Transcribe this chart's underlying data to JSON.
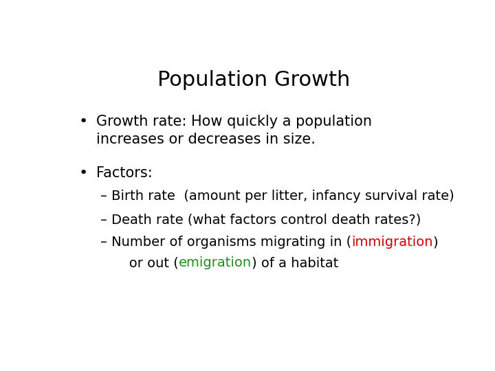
{
  "title": "Population Growth",
  "title_fontsize": 22,
  "title_color": "#000000",
  "background_color": "#ffffff",
  "bullet1_line1": "Growth rate: How quickly a population",
  "bullet1_line2": "increases or decreases in size.",
  "bullet2_text": "Factors:",
  "sub1_text": "– Birth rate  (amount per litter, infancy survival rate)",
  "sub2_text": "– Death rate (what factors control death rates?)",
  "sub3_pre": "– Number of organisms migrating in (",
  "sub3_immigration": "immigration",
  "sub3_post": ")",
  "sub4_pre": "   or out (",
  "sub3_emigration": "emigration",
  "sub4_post": ") of a habitat",
  "immigration_color": "#cc0000",
  "emigration_color": "#228B22",
  "bullet_fontsize": 15,
  "sub_fontsize": 14,
  "bullet_color": "#000000",
  "sub_color": "#000000",
  "font_family": "DejaVu Sans Condensed"
}
